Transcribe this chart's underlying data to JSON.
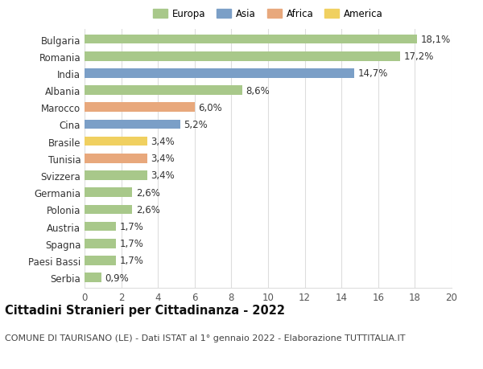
{
  "categories": [
    "Bulgaria",
    "Romania",
    "India",
    "Albania",
    "Marocco",
    "Cina",
    "Brasile",
    "Tunisia",
    "Svizzera",
    "Germania",
    "Polonia",
    "Austria",
    "Spagna",
    "Paesi Bassi",
    "Serbia"
  ],
  "values": [
    18.1,
    17.2,
    14.7,
    8.6,
    6.0,
    5.2,
    3.4,
    3.4,
    3.4,
    2.6,
    2.6,
    1.7,
    1.7,
    1.7,
    0.9
  ],
  "labels": [
    "18,1%",
    "17,2%",
    "14,7%",
    "8,6%",
    "6,0%",
    "5,2%",
    "3,4%",
    "3,4%",
    "3,4%",
    "2,6%",
    "2,6%",
    "1,7%",
    "1,7%",
    "1,7%",
    "0,9%"
  ],
  "continents": [
    "Europa",
    "Europa",
    "Asia",
    "Europa",
    "Africa",
    "Asia",
    "America",
    "Africa",
    "Europa",
    "Europa",
    "Europa",
    "Europa",
    "Europa",
    "Europa",
    "Europa"
  ],
  "colors": {
    "Europa": "#a8c88a",
    "Asia": "#7b9fc7",
    "Africa": "#e8a87c",
    "America": "#f0d060"
  },
  "legend_order": [
    "Europa",
    "Asia",
    "Africa",
    "America"
  ],
  "xlim": [
    0,
    20
  ],
  "xticks": [
    0,
    2,
    4,
    6,
    8,
    10,
    12,
    14,
    16,
    18,
    20
  ],
  "title": "Cittadini Stranieri per Cittadinanza - 2022",
  "subtitle": "COMUNE DI TAURISANO (LE) - Dati ISTAT al 1° gennaio 2022 - Elaborazione TUTTITALIA.IT",
  "background_color": "#ffffff",
  "grid_color": "#dddddd",
  "bar_height": 0.55,
  "label_fontsize": 8.5,
  "tick_fontsize": 8.5,
  "title_fontsize": 10.5,
  "subtitle_fontsize": 8.0
}
